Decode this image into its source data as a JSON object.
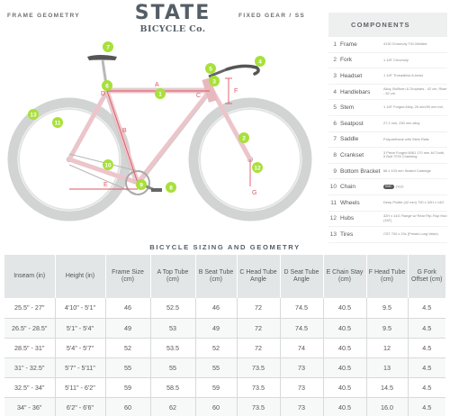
{
  "header": {
    "frame_geometry": "FRAME GEOMETRY",
    "fixed_gear": "FIXED GEAR / SS",
    "logo_top": "STATE",
    "logo_bottom": "BICYCLE Co."
  },
  "diagram_markers": {
    "numbers": [
      "1",
      "2",
      "3",
      "4",
      "5",
      "6",
      "7",
      "8",
      "9",
      "10",
      "11",
      "12",
      "13"
    ],
    "letters": [
      "A",
      "B",
      "C",
      "D",
      "E",
      "F",
      "G"
    ]
  },
  "components": {
    "title": "COMPONENTS",
    "items": [
      {
        "num": "1",
        "name": "Frame",
        "spec": "4130 Chromoly TIG-Welded"
      },
      {
        "num": "2",
        "name": "Fork",
        "spec": "1 1/8\" Chromoly"
      },
      {
        "num": "3",
        "name": "Headset",
        "spec": "1 1/8\" Threadless A-head"
      },
      {
        "num": "4",
        "name": "Handlebars",
        "spec": "Alloy, Bullhorn & Dropbars - 42 cm, Riser - 52 cm"
      },
      {
        "num": "5",
        "name": "Stem",
        "spec": "1 1/8\" Forged Alloy, 26 mm/90 mm ext."
      },
      {
        "num": "6",
        "name": "Seatpost",
        "spec": "27.2 mm, 250 mm alloy"
      },
      {
        "num": "7",
        "name": "Saddle",
        "spec": "Polyurethane with Steel Rails"
      },
      {
        "num": "8",
        "name": "Crankset",
        "spec": "3 Piece Forged 6061 170 mm 46 Tooth, 5 Bolt 7076 Chainring"
      },
      {
        "num": "9",
        "name": "Bottom Bracket",
        "spec": "68 x 103 mm Sealed Cartridge"
      },
      {
        "num": "10",
        "name": "Chain",
        "badge": "KMC",
        "spec": "Z410"
      },
      {
        "num": "11",
        "name": "Wheels",
        "spec": "Deep Profile (42 mm) 700 x 32H x 14G"
      },
      {
        "num": "12",
        "name": "Hubs",
        "spec": "32H x 14G Flange w/ Rear Flip-Flop Hub (16T)"
      },
      {
        "num": "13",
        "name": "Tires",
        "spec": "CST 700 x 23c (Presta Long Valve)"
      }
    ]
  },
  "sizing": {
    "title": "BICYCLE SIZING AND GEOMETRY",
    "columns": [
      "Inseam (in)",
      "Height (in)",
      "Frame Size (cm)",
      "A Top Tube (cm)",
      "B Seat Tube (cm)",
      "C Head Tube Angle",
      "D Seat Tube Angle",
      "E Chain Stay (cm)",
      "F Head Tube (cm)",
      "G Fork Offset (cm)"
    ],
    "rows": [
      [
        "25.5\" - 27\"",
        "4'10\" - 5'1\"",
        "46",
        "52.5",
        "46",
        "72",
        "74.5",
        "40.5",
        "9.5",
        "4.5"
      ],
      [
        "26.5\" - 28.5\"",
        "5'1\" - 5'4\"",
        "49",
        "53",
        "49",
        "72",
        "74.5",
        "40.5",
        "9.5",
        "4.5"
      ],
      [
        "28.5\" - 31\"",
        "5'4\" - 5'7\"",
        "52",
        "53.5",
        "52",
        "72",
        "74",
        "40.5",
        "12",
        "4.5"
      ],
      [
        "31\" - 32.5\"",
        "5'7\" - 5'11\"",
        "55",
        "55",
        "55",
        "73.5",
        "73",
        "40.5",
        "13",
        "4.5"
      ],
      [
        "32.5\" - 34\"",
        "5'11\" - 6'2\"",
        "59",
        "58.5",
        "59",
        "73.5",
        "73",
        "40.5",
        "14.5",
        "4.5"
      ],
      [
        "34\" - 36\"",
        "6'2\" - 6'6\"",
        "60",
        "62",
        "60",
        "73.5",
        "73",
        "40.5",
        "16.0",
        "4.5"
      ]
    ]
  },
  "colors": {
    "accent_green": "#a8e03a",
    "frame_pink": "#ecc5cb",
    "geometry_red": "#e05560",
    "tire_gray": "#d2d4d4",
    "table_header": "#e3e6e6"
  }
}
